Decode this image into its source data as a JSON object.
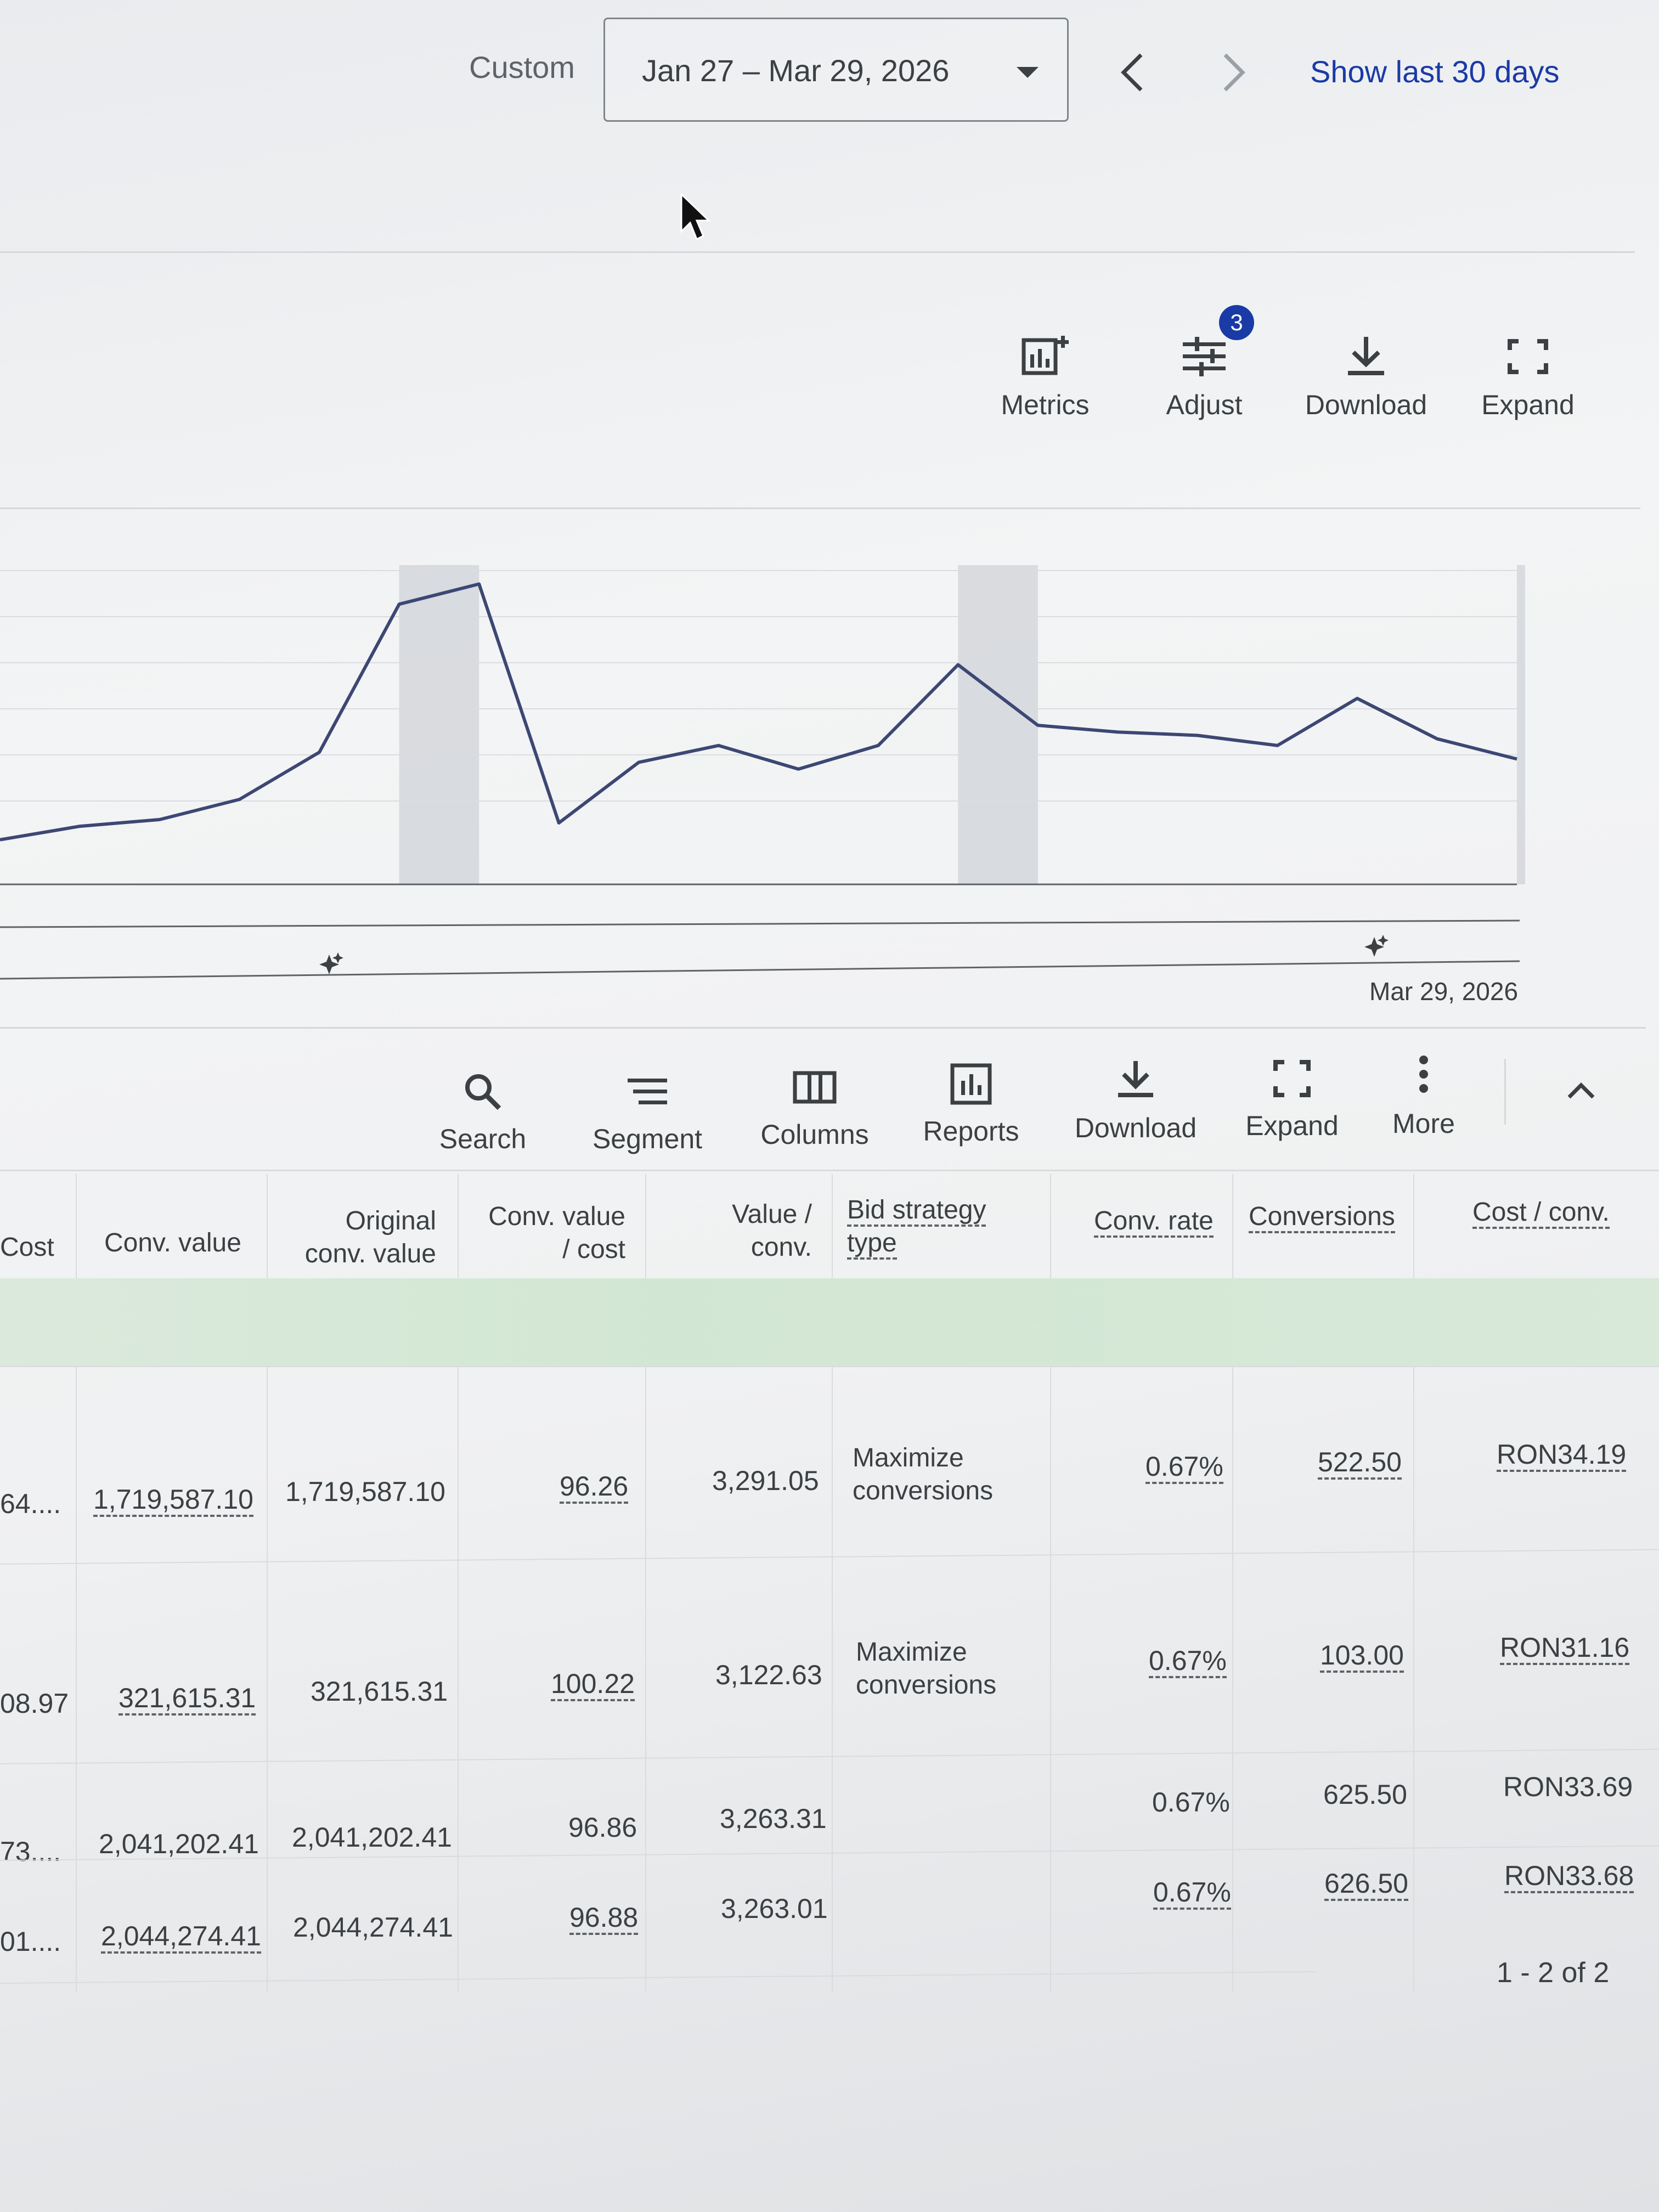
{
  "header": {
    "range_type": "Custom",
    "date_range": "Jan 27 – Mar 29, 2026",
    "show_last": "Show last 30 days"
  },
  "chart_toolbar": {
    "metrics": "Metrics",
    "adjust": "Adjust",
    "adjust_badge": "3",
    "download": "Download",
    "expand": "Expand"
  },
  "chart_data": {
    "type": "line",
    "x_end_label": "Mar 29, 2026",
    "series": [
      {
        "values": [
          10,
          14,
          16,
          22,
          36,
          80,
          86,
          15,
          33,
          38,
          31,
          38,
          62,
          44,
          42,
          41,
          38,
          52,
          40,
          34
        ]
      }
    ],
    "highlighted_ranges": [
      [
        5,
        6
      ],
      [
        12,
        13
      ],
      [
        19,
        20
      ]
    ],
    "color": "#3d4774"
  },
  "table_toolbar": {
    "search": "Search",
    "segment": "Segment",
    "columns": "Columns",
    "reports": "Reports",
    "download": "Download",
    "expand": "Expand",
    "more": "More"
  },
  "table": {
    "headers": {
      "cost": "Cost",
      "conv_value": "Conv. value",
      "orig_conv_value_1": "Original",
      "orig_conv_value_2": "conv. value",
      "conv_value_cost_1": "Conv. value",
      "conv_value_cost_2": "/ cost",
      "value_conv_1": "Value /",
      "value_conv_2": "conv.",
      "bid_strategy_1": "Bid strategy",
      "bid_strategy_2": "type",
      "conv_rate": "Conv. rate",
      "conversions": "Conversions",
      "cost_conv": "Cost / conv."
    },
    "rows": [
      {
        "cost": "64....",
        "conv_value": "1,719,587.10",
        "orig_conv_value": "1,719,587.10",
        "conv_value_cost": "96.26",
        "value_conv": "3,291.05",
        "bid_1": "Maximize",
        "bid_2": "conversions",
        "conv_rate": "0.67%",
        "conversions": "522.50",
        "cost_conv": "RON34.19"
      },
      {
        "cost": "08.97",
        "conv_value": "321,615.31",
        "orig_conv_value": "321,615.31",
        "conv_value_cost": "100.22",
        "value_conv": "3,122.63",
        "bid_1": "Maximize",
        "bid_2": "conversions",
        "conv_rate": "0.67%",
        "conversions": "103.00",
        "cost_conv": "RON31.16"
      },
      {
        "cost": "73....",
        "conv_value": "2,041,202.41",
        "orig_conv_value": "2,041,202.41",
        "conv_value_cost": "96.86",
        "value_conv": "3,263.31",
        "bid_1": "",
        "bid_2": "",
        "conv_rate": "0.67%",
        "conversions": "625.50",
        "cost_conv": "RON33.69"
      },
      {
        "cost": "01....",
        "conv_value": "2,044,274.41",
        "orig_conv_value": "2,044,274.41",
        "conv_value_cost": "96.88",
        "value_conv": "3,263.01",
        "bid_1": "",
        "bid_2": "",
        "conv_rate": "0.67%",
        "conversions": "626.50",
        "cost_conv": "RON33.68"
      }
    ],
    "pagination": "1 - 2 of 2"
  }
}
